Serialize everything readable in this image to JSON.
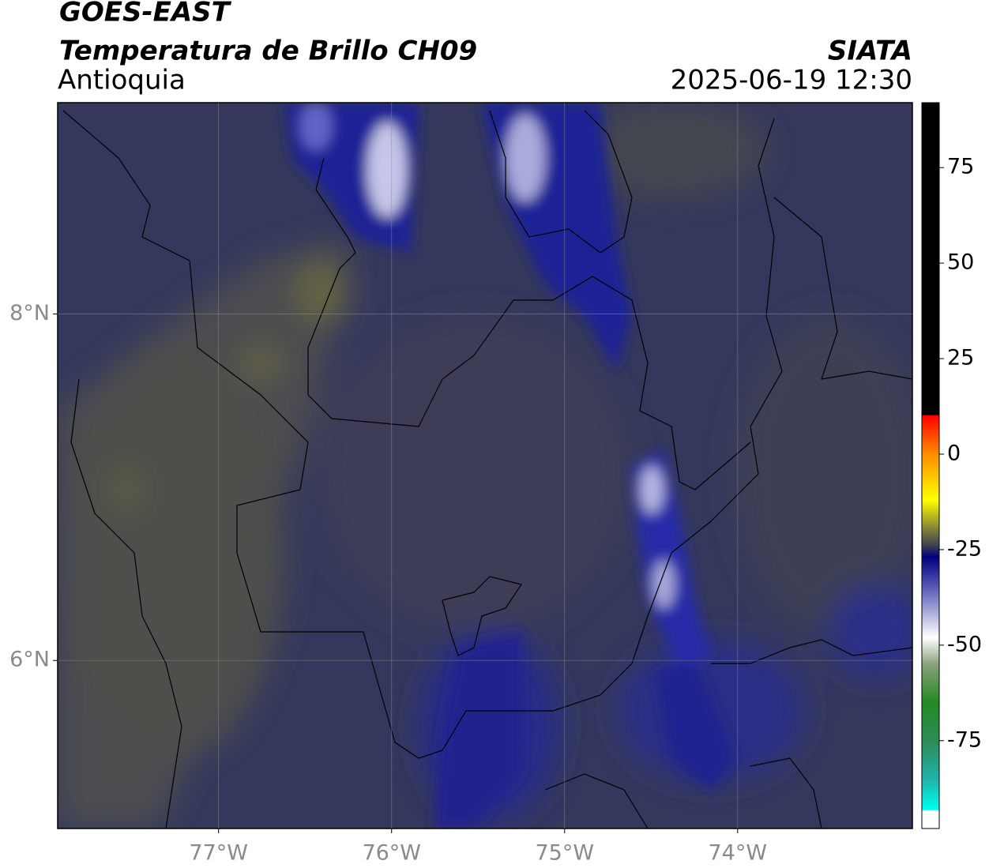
{
  "title": "GOES-EAST",
  "subtitle": "Temperatura de Brillo CH09",
  "region": "Antioquia",
  "source": "SIATA",
  "datetime": "2025-06-19 12:30",
  "map": {
    "xlim": [
      -77.93,
      -72.99
    ],
    "ylim": [
      5.03,
      9.22
    ],
    "xticks": [
      {
        "value": -77,
        "label": "77°W"
      },
      {
        "value": -76,
        "label": "76°W"
      },
      {
        "value": -75,
        "label": "75°W"
      },
      {
        "value": -74,
        "label": "74°W"
      }
    ],
    "yticks": [
      {
        "value": 6,
        "label": "6°N"
      },
      {
        "value": 8,
        "label": "8°N"
      }
    ],
    "grid": true
  },
  "colorbar": {
    "lim": [
      -98,
      92
    ],
    "ticks": [
      75,
      50,
      25,
      0,
      -25,
      -50,
      -75
    ]
  }
}
